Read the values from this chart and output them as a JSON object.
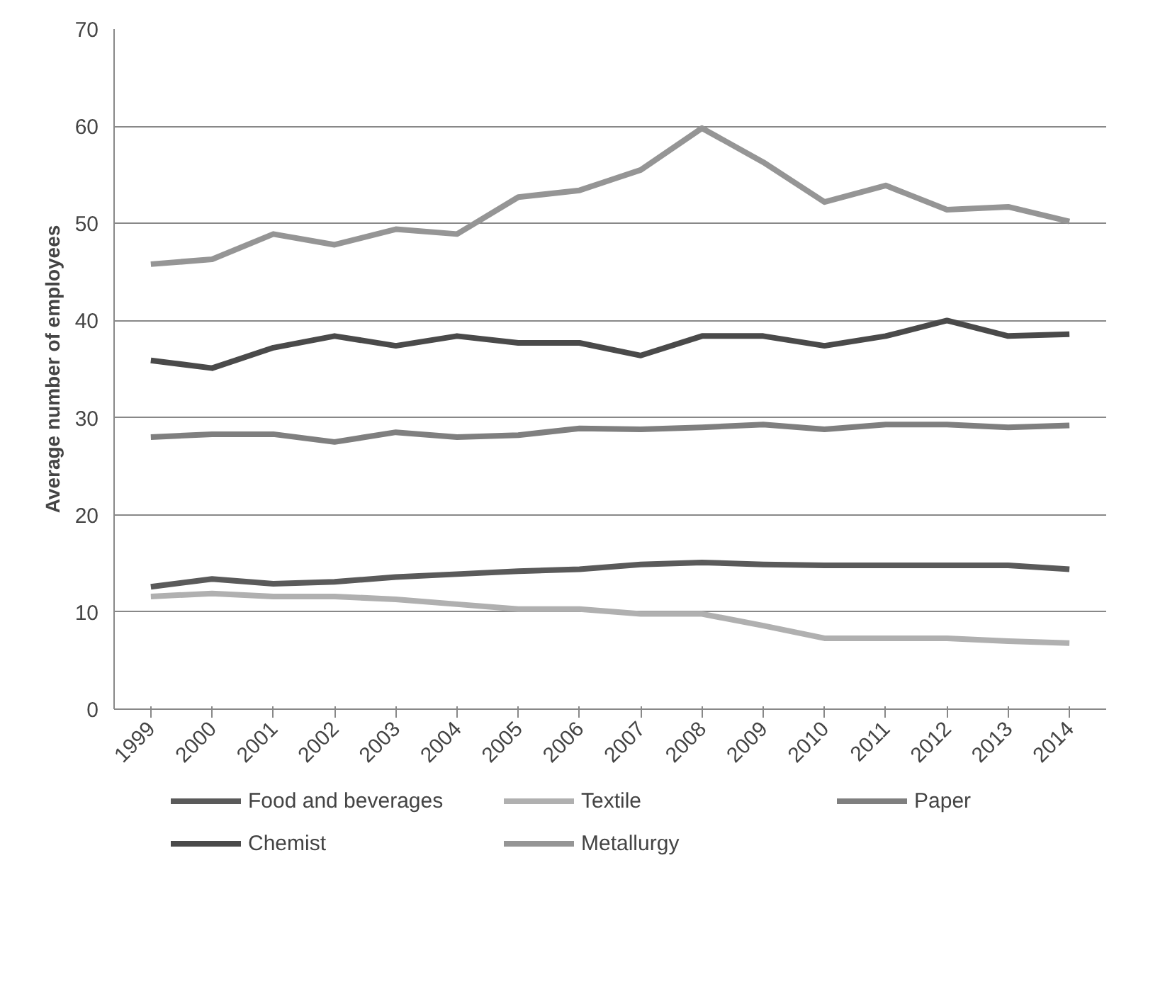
{
  "chart_data": {
    "type": "line",
    "ylabel": "Average number of employees",
    "categories": [
      "1999",
      "2000",
      "2001",
      "2002",
      "2003",
      "2004",
      "2005",
      "2006",
      "2007",
      "2008",
      "2009",
      "2010",
      "2011",
      "2012",
      "2013",
      "2014"
    ],
    "series": [
      {
        "name": "Food and beverages",
        "color": "#5a5a5a",
        "values": [
          12.6,
          13.4,
          12.9,
          13.1,
          13.6,
          13.9,
          14.2,
          14.4,
          14.9,
          15.1,
          14.9,
          14.8,
          14.8,
          14.8,
          14.8,
          14.4
        ]
      },
      {
        "name": "Textile",
        "color": "#b0b0b0",
        "values": [
          11.6,
          11.9,
          11.6,
          11.6,
          11.3,
          10.8,
          10.3,
          10.3,
          9.8,
          9.8,
          8.6,
          7.3,
          7.3,
          7.3,
          7.0,
          6.8
        ]
      },
      {
        "name": "Paper",
        "color": "#7f7f7f",
        "values": [
          28.0,
          28.3,
          28.3,
          27.5,
          28.5,
          28.0,
          28.2,
          28.9,
          28.8,
          29.0,
          29.3,
          28.8,
          29.3,
          29.3,
          29.0,
          29.2
        ]
      },
      {
        "name": "Chemist",
        "color": "#4a4a4a",
        "values": [
          35.9,
          35.1,
          37.2,
          38.4,
          37.4,
          38.4,
          37.7,
          37.7,
          36.4,
          38.4,
          38.4,
          37.4,
          38.4,
          40.0,
          38.4,
          38.6
        ]
      },
      {
        "name": "Metallurgy",
        "color": "#959595",
        "values": [
          45.8,
          46.3,
          48.9,
          47.8,
          49.4,
          48.9,
          52.7,
          53.4,
          55.5,
          59.8,
          56.3,
          52.2,
          53.9,
          51.4,
          51.7,
          50.2
        ]
      }
    ],
    "ylim": [
      0,
      70
    ],
    "yticks": [
      0,
      10,
      20,
      30,
      40,
      50,
      60,
      70
    ],
    "grid": "y",
    "legend": "bottom",
    "marker": "none",
    "line_style": "solid"
  }
}
